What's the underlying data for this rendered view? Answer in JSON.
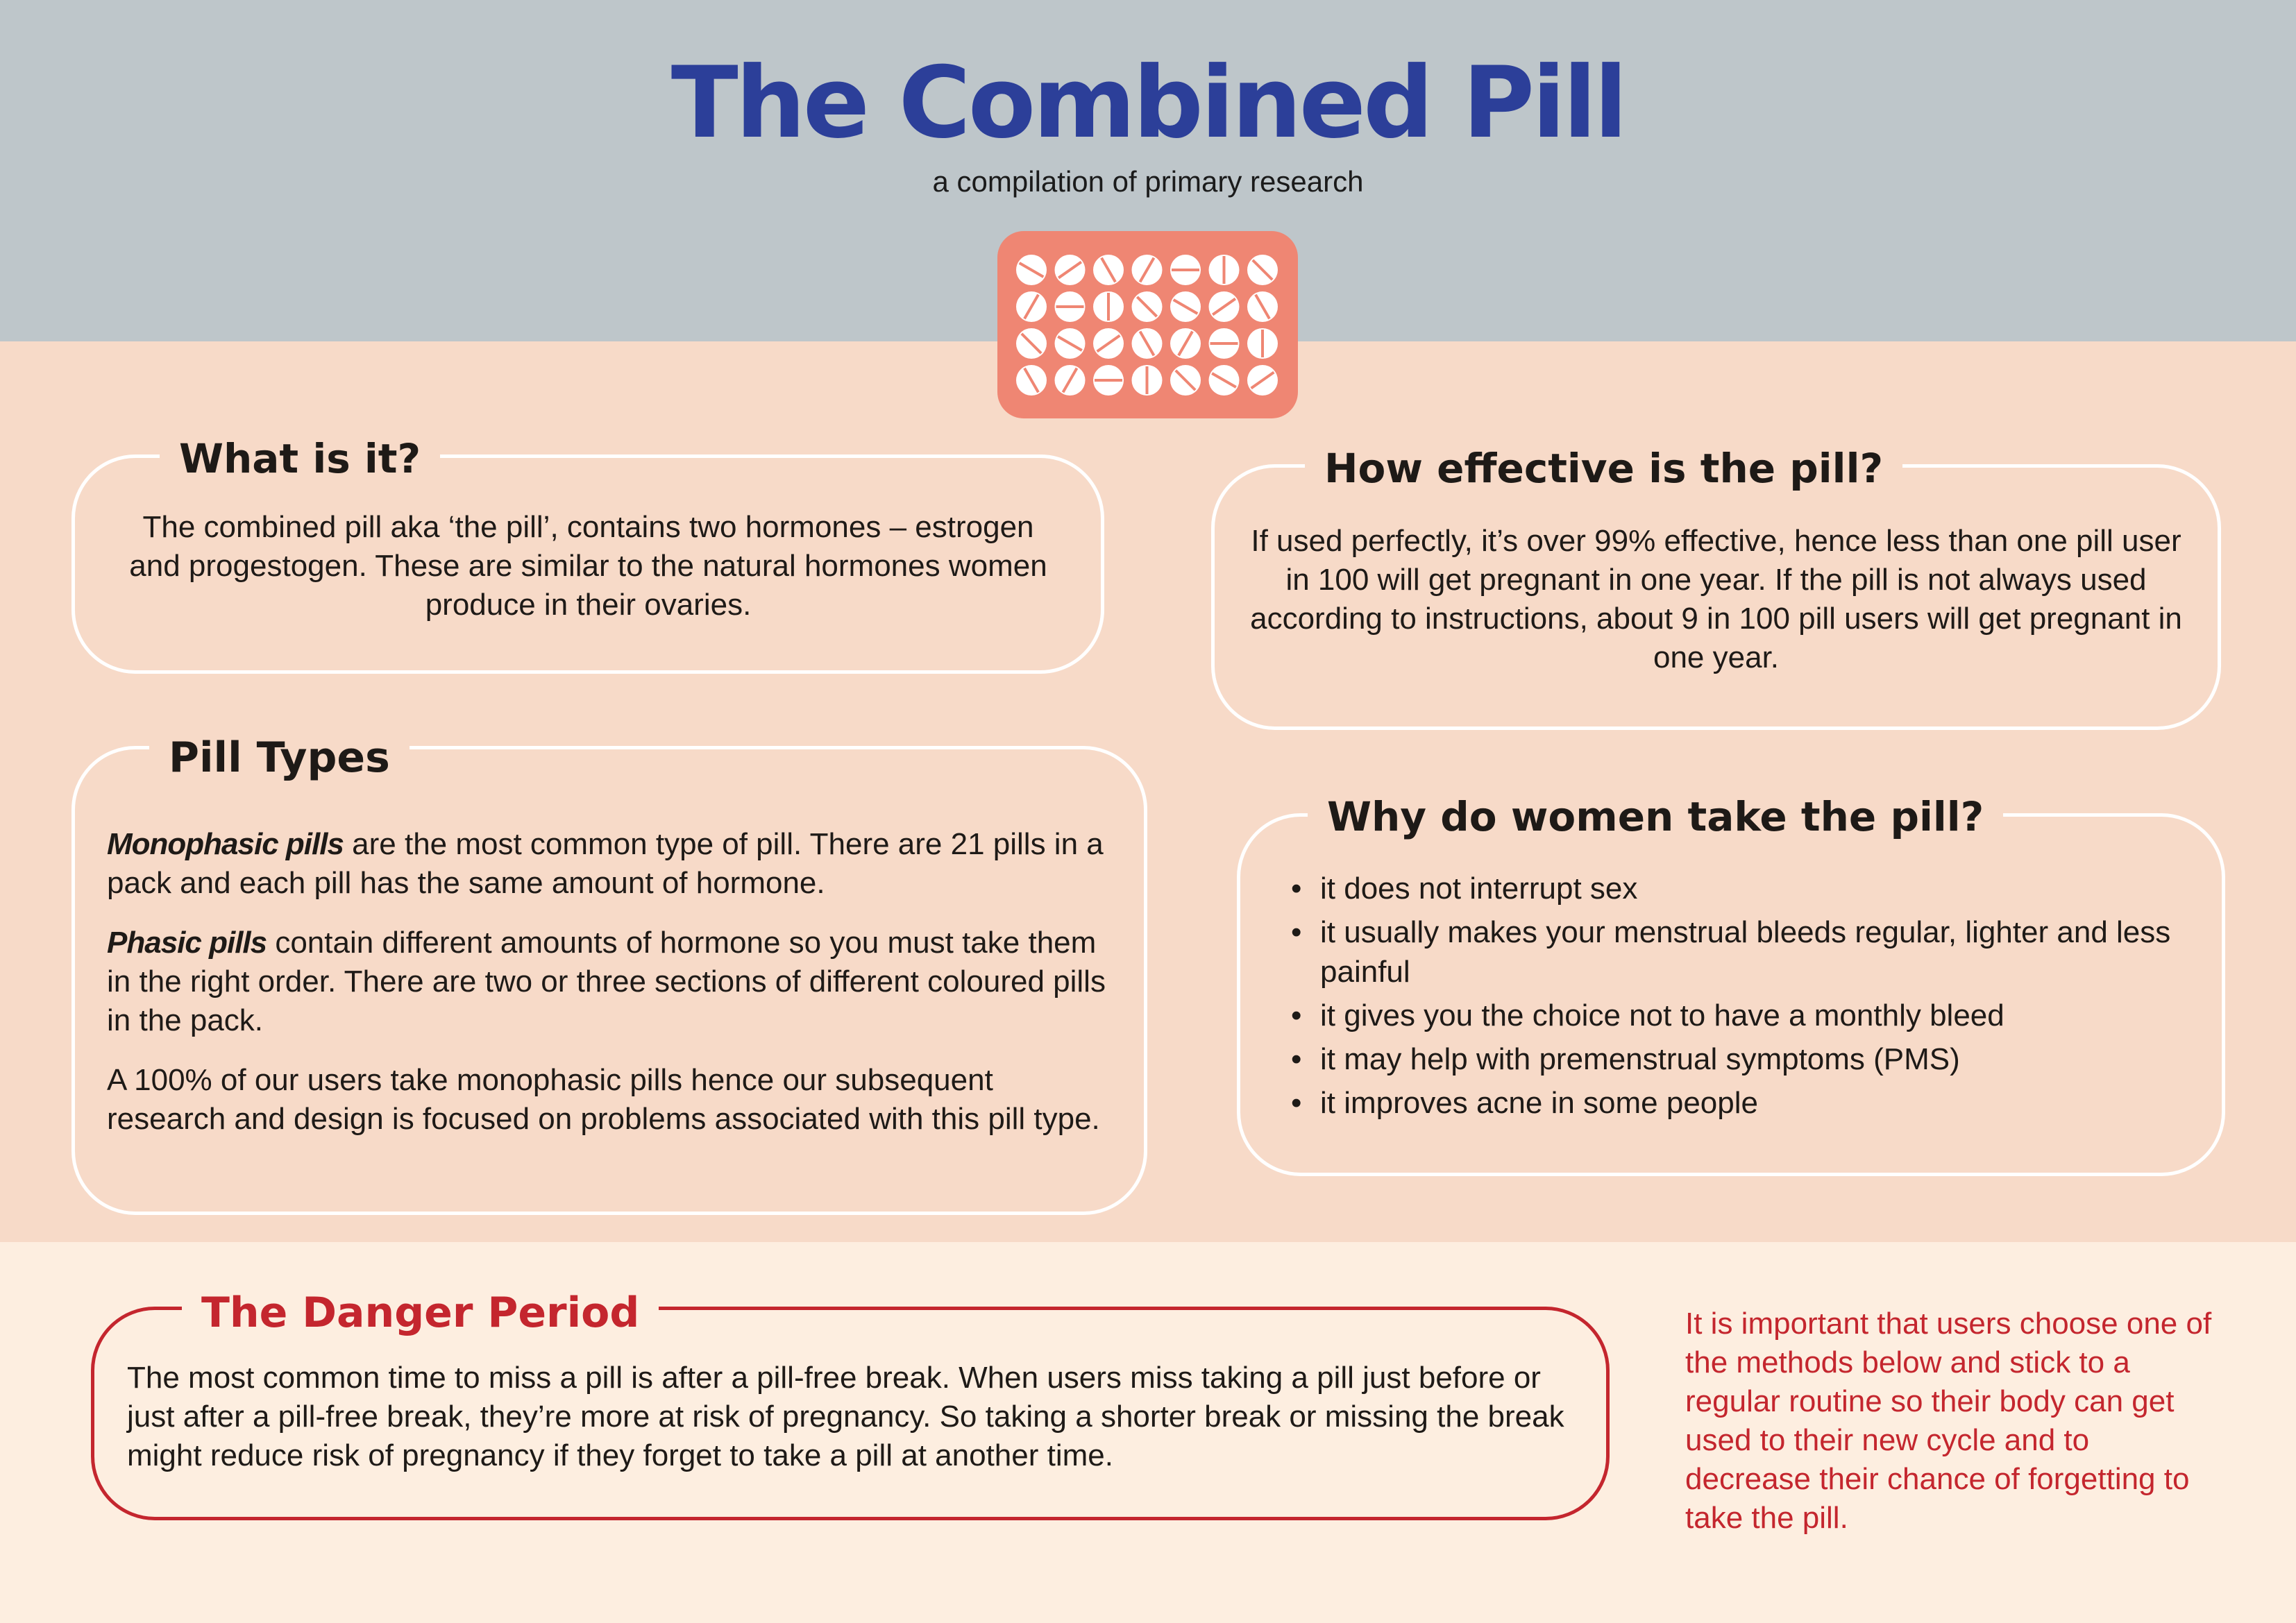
{
  "header": {
    "title": "The Combined Pill",
    "subtitle": "a compilation of primary research",
    "pack_icon": "pill-blister-pack-icon"
  },
  "what": {
    "heading": "What is it?",
    "body": "The combined pill aka ‘the pill’, contains two hormones – estrogen and progestogen. These are similar to the natural hormones women produce in their ovaries."
  },
  "effective": {
    "heading": "How effective is the pill?",
    "body": "If used perfectly, it’s over 99% effective, hence less than one pill user in 100 will get pregnant in one year. If the pill is not always used according to instructions, about 9 in 100 pill users will get pregnant in one year."
  },
  "types": {
    "heading": "Pill Types",
    "mono_term": "Monophasic pills",
    "mono_text": " are the most common type of pill.  There are 21 pills in a pack and each pill has the same amount of hormone.",
    "phasic_term": "Phasic pills",
    "phasic_text": " contain different amounts of hormone so you must take them in the right order. There are two or three sections of different coloured pills in the pack.",
    "note": "A 100% of our users take monophasic pills hence our subsequent research and design is focused on  problems associated with this pill type."
  },
  "why": {
    "heading": "Why do women take the pill?",
    "items": [
      "it does not interrupt sex",
      "it usually makes your menstrual bleeds regular, lighter and less painful",
      "it gives you the choice not to have a monthly bleed",
      "it may help with premenstrual symptoms (PMS)",
      "it improves acne in some people"
    ]
  },
  "danger": {
    "heading": "The Danger Period",
    "body": "The most common time to miss a pill is after a pill-free break. When users miss taking a pill just before or just after a pill-free break, they’re more at risk of pregnancy. So taking a shorter break or missing the break might reduce risk of pregnancy if they forget to take a pill at another time."
  },
  "note": {
    "text": "It is important that users choose one of the methods below and stick to a regular routine so their body can get used to their new cycle and to decrease their chance of forgetting to take the pill."
  },
  "colors": {
    "title_blue": "#2c3f99",
    "header_grey": "#bec6ca",
    "peach": "#f7dac8",
    "cream": "#fdeee0",
    "pack_coral": "#ef8673",
    "danger_red": "#c4262e"
  }
}
